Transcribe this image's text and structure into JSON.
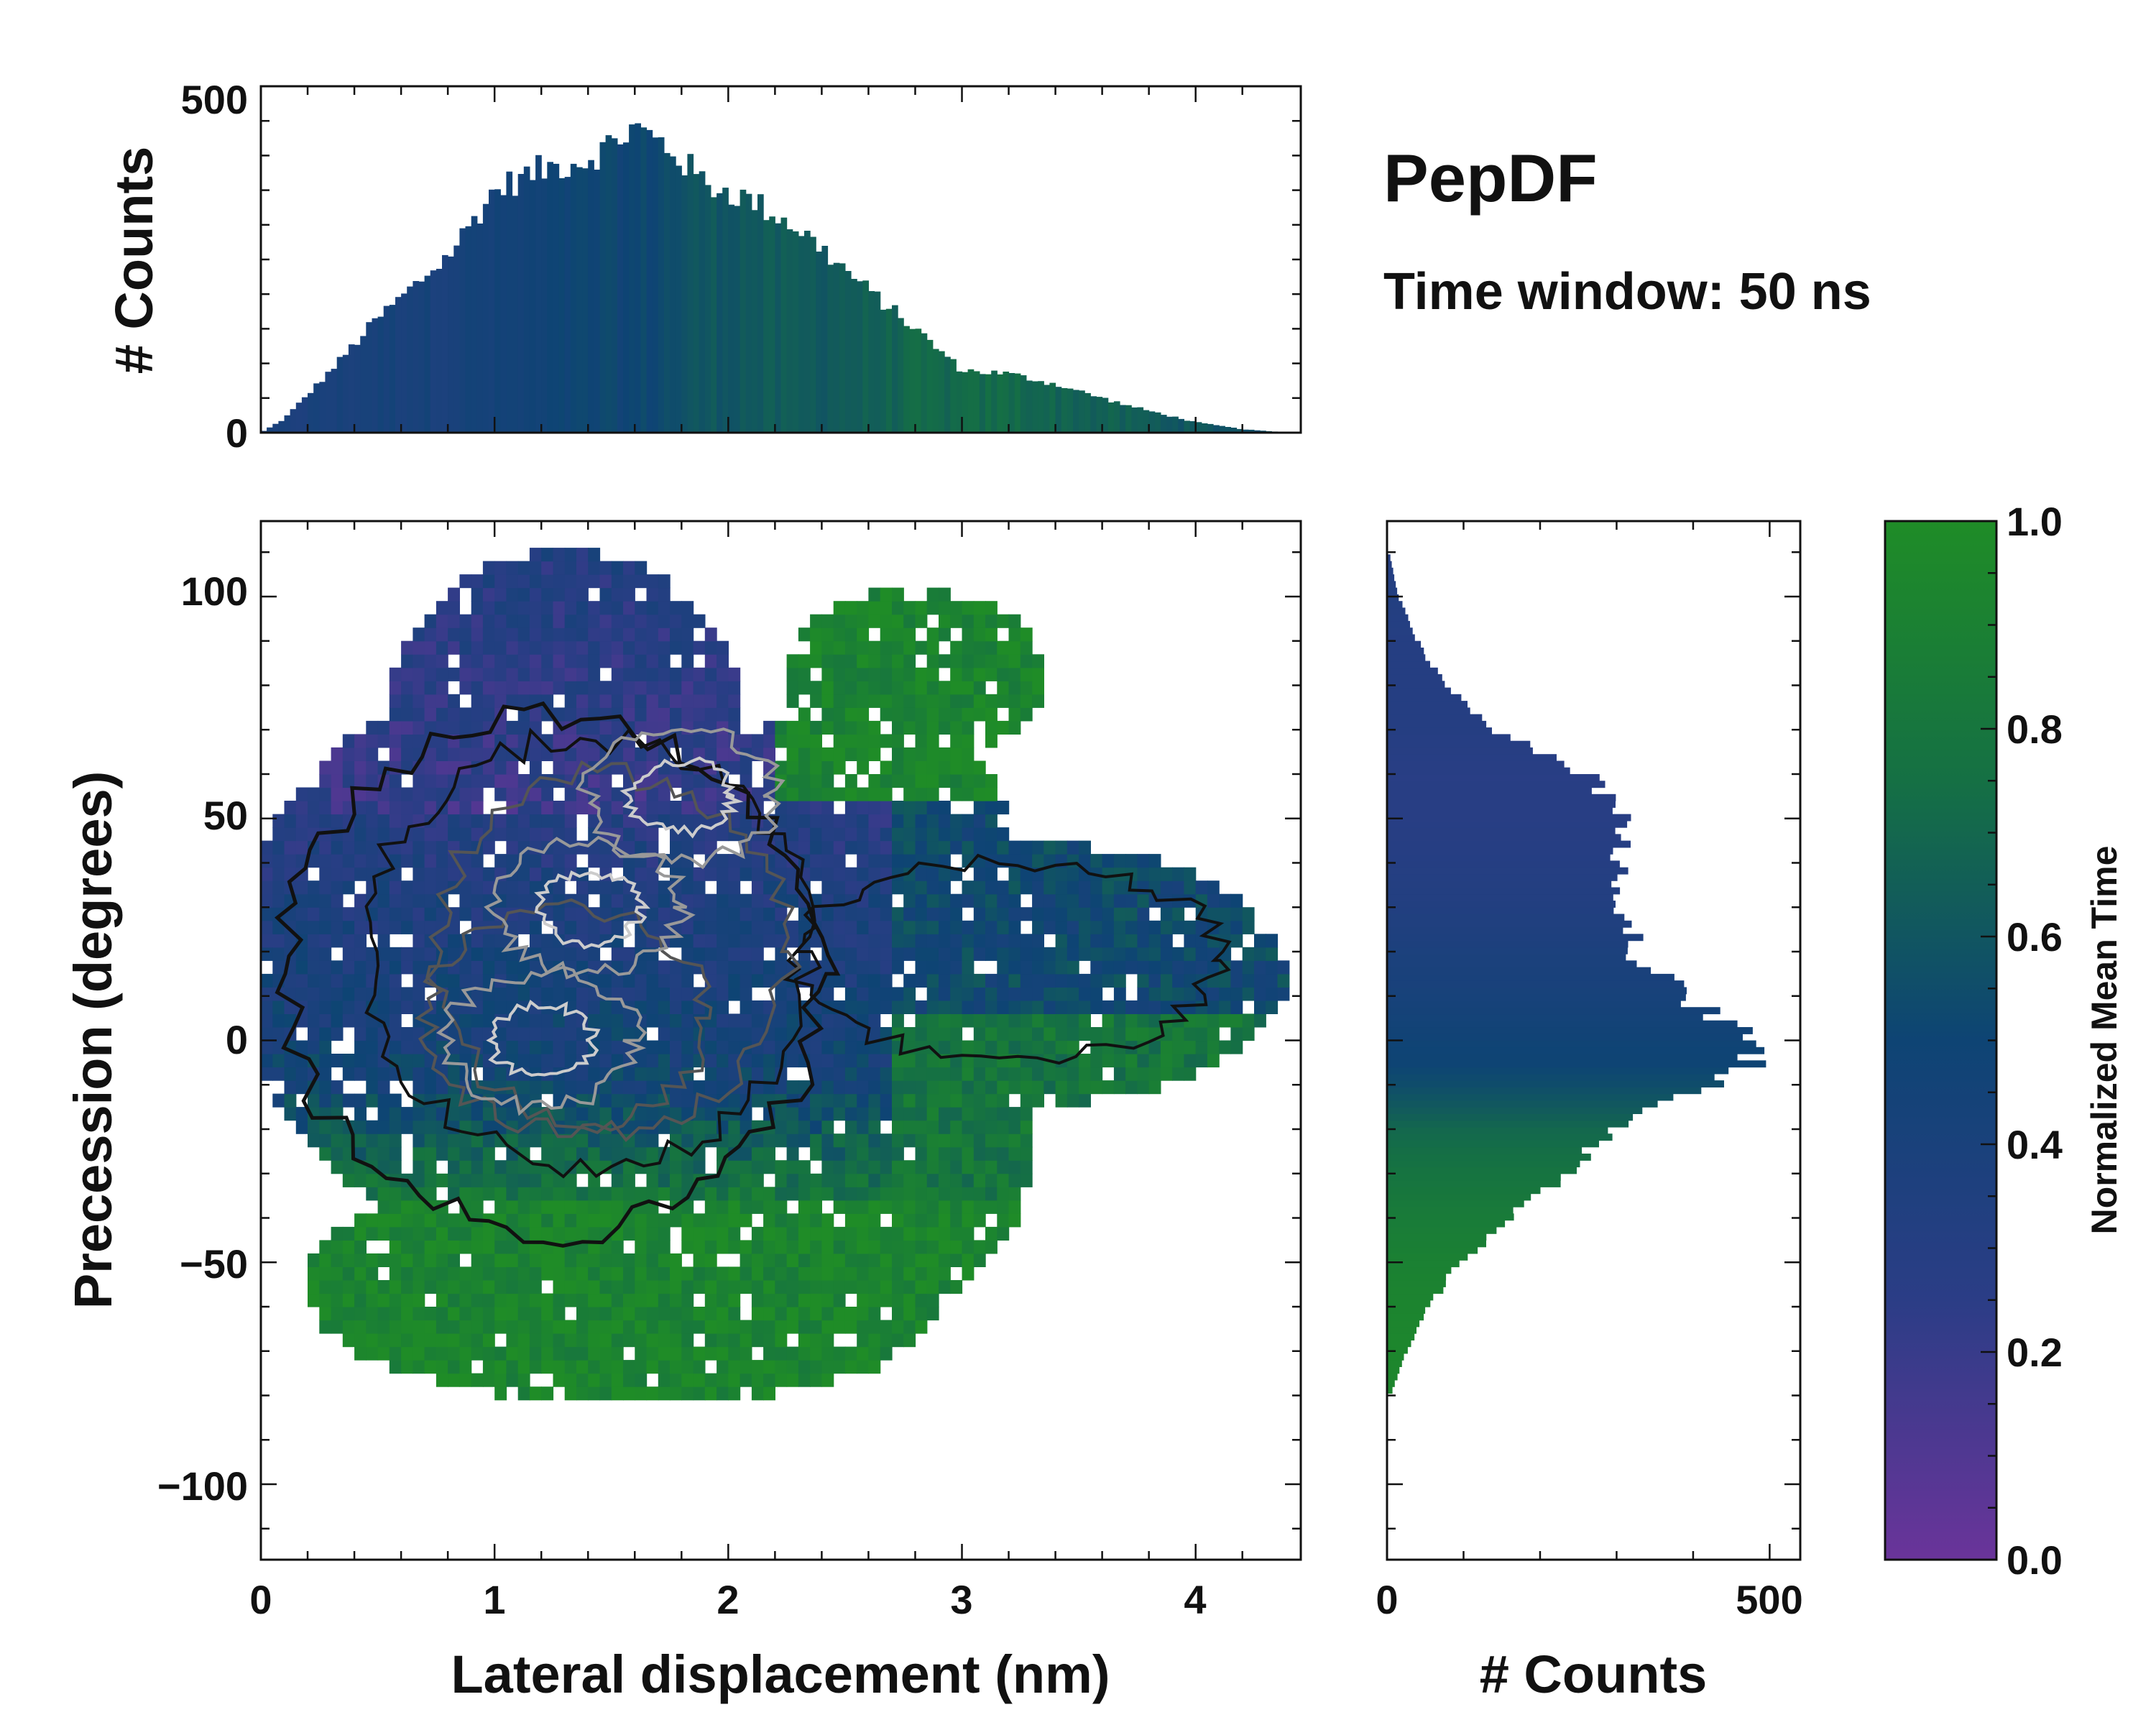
{
  "figure": {
    "title": "PepDF",
    "subtitle": "Time window: 50 ns"
  },
  "colors": {
    "colormap": [
      "#6a349a",
      "#2b3d86",
      "#0e4474",
      "#157044",
      "#1f8c27"
    ],
    "contour_outer": "#111111",
    "contour_mid": "#555555",
    "contour_inner": "#cccccc"
  },
  "chart_data": [
    {
      "id": "main-2d-histogram",
      "type": "heatmap",
      "xlabel": "Lateral displacement (nm)",
      "ylabel": "Precession (degrees)",
      "xlim": [
        0,
        4.45
      ],
      "ylim": [
        -117,
        117
      ],
      "xticks": [
        0,
        1,
        2,
        3,
        4
      ],
      "xtick_labels": [
        "0",
        "1",
        "2",
        "3",
        "4"
      ],
      "yticks": [
        -100,
        -50,
        0,
        50,
        100
      ],
      "ytick_labels": [
        "−100",
        "−50",
        "0",
        "50",
        "100"
      ],
      "color_encoding": "Normalized Mean Time",
      "regions": [
        {
          "name": "upper-left lobe",
          "x_range": [
            0.2,
            2.1
          ],
          "y_range": [
            40,
            112
          ],
          "normalized_mean_time": 0.2
        },
        {
          "name": "central core",
          "x_range": [
            0.1,
            2.6
          ],
          "y_range": [
            -30,
            60
          ],
          "normalized_mean_time": 0.45
        },
        {
          "name": "upper-right lobe",
          "x_range": [
            2.1,
            3.4
          ],
          "y_range": [
            55,
            100
          ],
          "normalized_mean_time": 0.95
        },
        {
          "name": "right arm",
          "x_range": [
            2.5,
            4.3
          ],
          "y_range": [
            -10,
            45
          ],
          "normalized_mean_time": 0.55
        },
        {
          "name": "lower band",
          "x_range": [
            0.1,
            3.0
          ],
          "y_range": [
            -85,
            -30
          ],
          "normalized_mean_time": 0.95
        }
      ],
      "contour_density_peaks": [
        {
          "x": 1.2,
          "y": 0
        },
        {
          "x": 1.8,
          "y": 55
        },
        {
          "x": 1.4,
          "y": 30
        }
      ]
    },
    {
      "id": "top-histogram",
      "type": "bar",
      "ylabel": "# Counts",
      "xlim": [
        0,
        4.45
      ],
      "ylim": [
        0,
        500
      ],
      "yticks": [
        0,
        500
      ],
      "ytick_labels": [
        "0",
        "500"
      ],
      "bin_width": 0.025,
      "profile_x": [
        0,
        0.1,
        0.3,
        0.5,
        0.8,
        1.0,
        1.2,
        1.4,
        1.6,
        1.75,
        1.9,
        2.1,
        2.3,
        2.6,
        2.8,
        3.0,
        3.2,
        3.4,
        3.7,
        4.0,
        4.2,
        4.4
      ],
      "profile_counts": [
        0,
        20,
        90,
        165,
        255,
        350,
        380,
        395,
        440,
        410,
        360,
        335,
        295,
        205,
        150,
        90,
        85,
        70,
        40,
        15,
        5,
        0
      ],
      "color_by": "Normalized Mean Time",
      "profile_normalized_mean_time": [
        0.38,
        0.38,
        0.4,
        0.42,
        0.42,
        0.44,
        0.46,
        0.5,
        0.5,
        0.55,
        0.6,
        0.62,
        0.62,
        0.65,
        0.7,
        0.7,
        0.72,
        0.68,
        0.65,
        0.6,
        0.58,
        0.55
      ]
    },
    {
      "id": "right-histogram",
      "type": "bar",
      "orientation": "horizontal",
      "xlabel": "# Counts",
      "xlim": [
        0,
        540
      ],
      "xticks": [
        0,
        500
      ],
      "xtick_labels": [
        "0",
        "500"
      ],
      "ylim": [
        -117,
        117
      ],
      "bin_width": 1.5,
      "profile_y": [
        -80,
        -70,
        -60,
        -50,
        -40,
        -30,
        -20,
        -15,
        -10,
        -5,
        0,
        5,
        10,
        20,
        30,
        40,
        50,
        60,
        70,
        80,
        90,
        100,
        110
      ],
      "profile_counts": [
        5,
        25,
        55,
        95,
        160,
        230,
        290,
        360,
        425,
        470,
        490,
        430,
        390,
        320,
        310,
        300,
        310,
        260,
        140,
        75,
        40,
        15,
        3
      ],
      "color_by": "Normalized Mean Time",
      "profile_normalized_mean_time": [
        0.95,
        0.95,
        0.93,
        0.9,
        0.85,
        0.78,
        0.7,
        0.62,
        0.55,
        0.5,
        0.48,
        0.45,
        0.42,
        0.38,
        0.33,
        0.3,
        0.28,
        0.27,
        0.3,
        0.3,
        0.3,
        0.32,
        0.3
      ]
    },
    {
      "id": "colorbar",
      "type": "colorbar",
      "label": "Normalized Mean Time",
      "range": [
        0,
        1
      ],
      "ticks": [
        0.0,
        0.2,
        0.4,
        0.6,
        0.8,
        1.0
      ],
      "tick_labels": [
        "0.0",
        "0.2",
        "0.4",
        "0.6",
        "0.8",
        "1.0"
      ]
    }
  ]
}
